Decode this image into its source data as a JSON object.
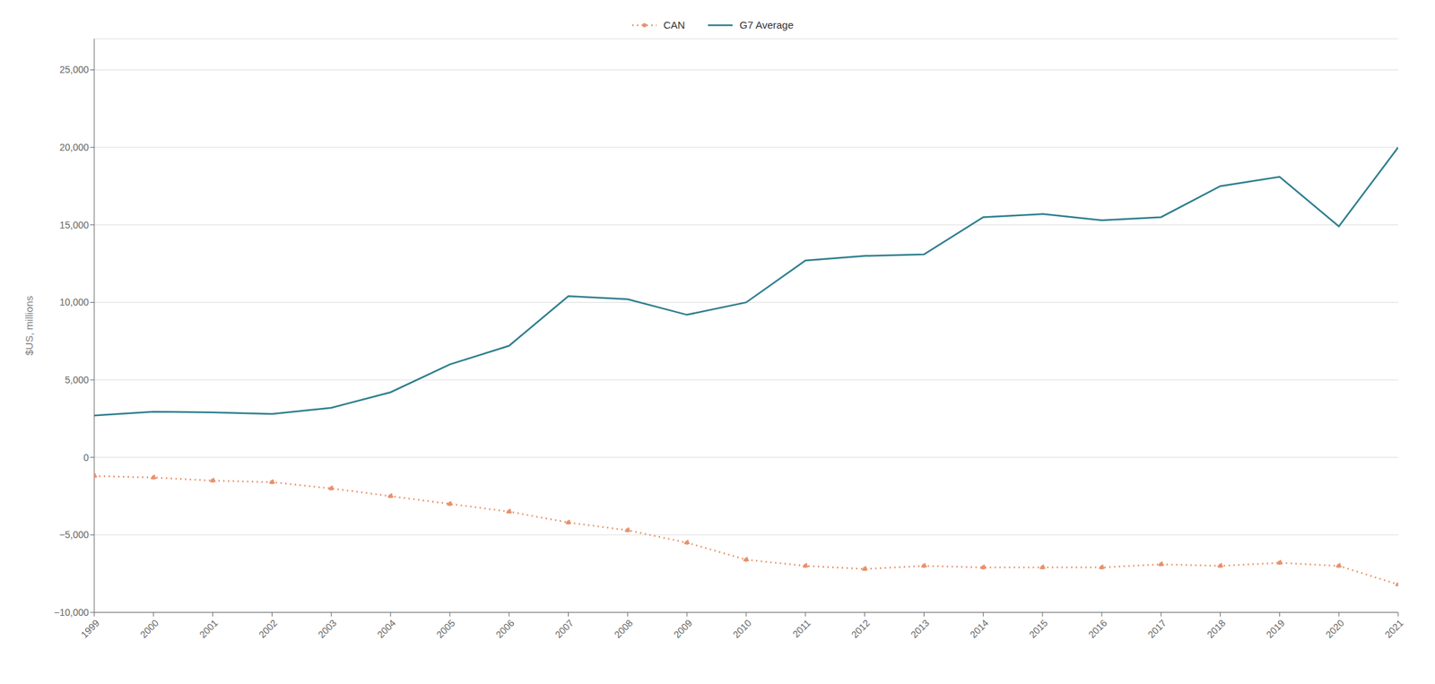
{
  "chart_data": {
    "type": "line",
    "x": [
      1999,
      2000,
      2001,
      2002,
      2003,
      2004,
      2005,
      2006,
      2007,
      2008,
      2009,
      2010,
      2011,
      2012,
      2013,
      2014,
      2015,
      2016,
      2017,
      2018,
      2019,
      2020,
      2021
    ],
    "series": [
      {
        "name": "G7 Average",
        "color": "#2e7f8e",
        "line_style": "solid",
        "values": [
          2700,
          2950,
          2900,
          2800,
          3200,
          4200,
          6000,
          7200,
          10400,
          10200,
          9200,
          10000,
          12700,
          13000,
          13100,
          15500,
          15700,
          15300,
          15500,
          17500,
          18100,
          14900,
          20000
        ]
      },
      {
        "name": "CAN",
        "color": "#e8916a",
        "line_style": "dotted",
        "marker": "circle",
        "values": [
          -1200,
          -1300,
          -1500,
          -1600,
          -2000,
          -2500,
          -3000,
          -3500,
          -4200,
          -4700,
          -5500,
          -6600,
          -7000,
          -7200,
          -7000,
          -7100,
          -7100,
          -7100,
          -6900,
          -7000,
          -6800,
          -7000,
          -8200
        ]
      }
    ],
    "y_label": "$US, millions",
    "xlim": [
      1999,
      2021
    ],
    "xticks": [
      1999,
      2000,
      2001,
      2002,
      2003,
      2004,
      2005,
      2006,
      2007,
      2008,
      2009,
      2010,
      2011,
      2012,
      2013,
      2014,
      2015,
      2016,
      2017,
      2018,
      2019,
      2020,
      2021
    ],
    "ylim": [
      -10000,
      27000
    ],
    "yticks": [
      {
        "value": -10000,
        "label": "−10,000"
      },
      {
        "value": -5000,
        "label": "−5,000"
      },
      0,
      {
        "value": 5000,
        "label": "5,000"
      },
      {
        "value": 10000,
        "label": "10,000"
      },
      {
        "value": 15000,
        "label": "15,000"
      },
      {
        "value": 20000,
        "label": "20,000"
      },
      {
        "value": 25000,
        "label": "25,000"
      }
    ],
    "grid": true,
    "legend": "top"
  }
}
